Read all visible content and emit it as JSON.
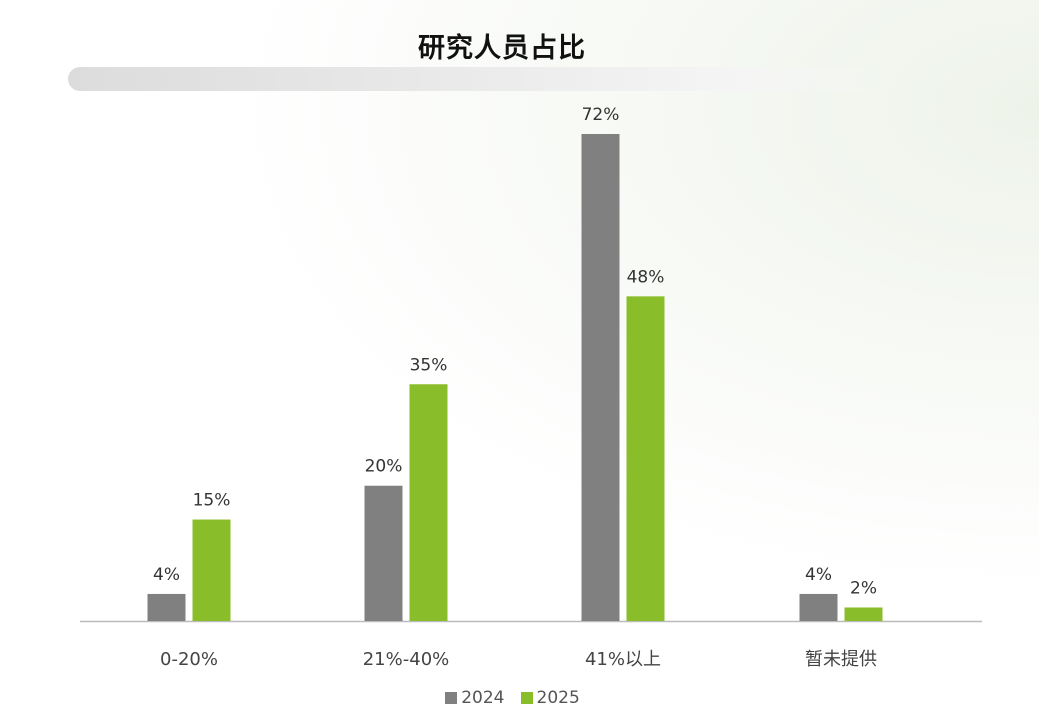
{
  "colors": {
    "series_2024": "#808080",
    "series_2025": "#8abd2a",
    "axis": "#bbbbbb",
    "label_text": "#333333",
    "category_text": "#444444"
  },
  "chart_data": {
    "type": "bar",
    "title": "研究人员占比",
    "categories": [
      "0-20%",
      "21%-40%",
      "41%以上",
      "暂未提供"
    ],
    "series": [
      {
        "name": "2024",
        "values": [
          4,
          20,
          72,
          4
        ],
        "labels": [
          "4%",
          "20%",
          "72%",
          "4%"
        ]
      },
      {
        "name": "2025",
        "values": [
          15,
          35,
          48,
          2
        ],
        "labels": [
          "15%",
          "35%",
          "48%",
          "2%"
        ]
      }
    ],
    "xlabel": "",
    "ylabel": "",
    "ylim": [
      0,
      72
    ],
    "grid": false,
    "legend": "bottom-center",
    "unit": "%"
  }
}
